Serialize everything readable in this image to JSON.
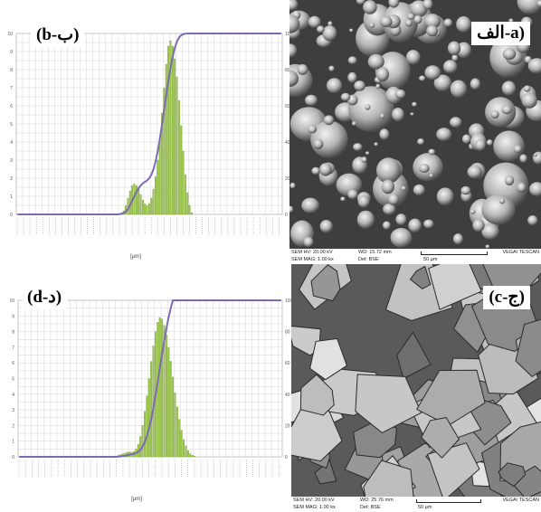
{
  "labels": {
    "b": "(b-ب)",
    "a": "الف-a)",
    "d": "(d-د)",
    "c": "(c-ج)"
  },
  "axis_unit": "[µm]",
  "sem_a": {
    "hv": "SEM HV: 20.00 kV",
    "mag": "SEM MAG: 1.00 kx",
    "wd": "WD: 15.72 mm",
    "det": "Det: BSE",
    "scale": "50 µm",
    "brand": "VEGA\\ TESCAN"
  },
  "sem_c": {
    "hv": "SEM HV: 20.00 kV",
    "mag": "SEM MAG: 1.00 kx",
    "wd": "WD: 25.76 mm",
    "det": "Det: BSE",
    "scale": "50 µm",
    "brand": "VEGA\\ TESCAN"
  },
  "colors": {
    "bar": "#9bc44f",
    "bar_edge": "#7ba32e",
    "curve": "#7d6ab3",
    "grid": "#d6d6d6"
  },
  "chart_data": [
    {
      "type": "bar",
      "panel": "b",
      "xlabel": "[µm]",
      "ylim": [
        0,
        10
      ],
      "y2lim": [
        0,
        100
      ],
      "y_ticks": [
        0,
        1,
        2,
        3,
        4,
        5,
        6,
        7,
        8,
        9,
        10
      ],
      "y2_ticks": [
        0,
        20,
        40,
        60,
        80,
        100
      ],
      "series": [
        {
          "kind": "bar",
          "values": [
            0,
            0,
            0,
            0,
            0,
            0,
            0,
            0,
            0,
            0,
            0,
            0,
            0,
            0,
            0,
            0,
            0,
            0,
            0,
            0,
            0,
            0,
            0,
            0,
            0,
            0,
            0,
            0,
            0,
            0,
            0,
            0,
            0,
            0,
            0,
            0,
            0,
            0,
            0,
            0,
            0,
            0,
            0,
            0,
            0,
            0,
            0,
            0,
            0.05,
            0.1,
            0.2,
            0.5,
            0.9,
            1.3,
            1.6,
            1.7,
            1.6,
            1.4,
            1.1,
            0.8,
            0.6,
            0.5,
            0.6,
            0.9,
            1.4,
            2.1,
            3.0,
            4.2,
            5.6,
            7.0,
            8.3,
            9.3,
            9.6,
            9.3,
            8.6,
            7.6,
            6.3,
            4.9,
            3.5,
            2.2,
            1.2,
            0.5,
            0.1
          ]
        },
        {
          "kind": "cumulative",
          "values": [
            0,
            0,
            0,
            0,
            0,
            0,
            0,
            0,
            0,
            0,
            0,
            0,
            0,
            0,
            0,
            0,
            0,
            0,
            0,
            0,
            0,
            0,
            0,
            0,
            0,
            0,
            0,
            0,
            0,
            0,
            0,
            0,
            0,
            0,
            0,
            0,
            0,
            0,
            0,
            0,
            0,
            0,
            0,
            0,
            0,
            0,
            0,
            0,
            0.1,
            0.3,
            0.7,
            1.5,
            3.0,
            5.2,
            7.6,
            10.0,
            12.5,
            14.5,
            16.0,
            17.2,
            18.0,
            18.8,
            20.0,
            22.0,
            25.0,
            29.5,
            35.0,
            42.0,
            50.0,
            58.0,
            66.0,
            74.0,
            81.0,
            87.0,
            92.0,
            95.5,
            97.8,
            99.0,
            99.6,
            99.9,
            100,
            100,
            100,
            100,
            100,
            100,
            100,
            100,
            100,
            100,
            100,
            100,
            100,
            100,
            100,
            100,
            100,
            100,
            100,
            100,
            100,
            100,
            100,
            100,
            100,
            100,
            100,
            100,
            100,
            100,
            100,
            100,
            100,
            100,
            100,
            100,
            100,
            100,
            100,
            100,
            100,
            100,
            100,
            100,
            100
          ]
        }
      ]
    },
    {
      "type": "bar",
      "panel": "d",
      "xlabel": "[µm]",
      "ylim": [
        0,
        10
      ],
      "y2lim": [
        0,
        100
      ],
      "y_ticks": [
        0,
        1,
        2,
        3,
        4,
        5,
        6,
        7,
        8,
        9,
        10
      ],
      "y2_ticks": [
        0,
        20,
        40,
        60,
        80,
        100
      ],
      "series": [
        {
          "kind": "bar",
          "values": [
            0,
            0,
            0,
            0,
            0,
            0,
            0,
            0,
            0,
            0,
            0,
            0,
            0,
            0,
            0,
            0,
            0,
            0,
            0,
            0,
            0,
            0,
            0,
            0,
            0,
            0,
            0,
            0,
            0,
            0,
            0,
            0,
            0,
            0,
            0,
            0,
            0,
            0,
            0,
            0,
            0,
            0,
            0,
            0,
            0,
            0.05,
            0.1,
            0.15,
            0.2,
            0.25,
            0.3,
            0.3,
            0.3,
            0.35,
            0.5,
            0.8,
            1.3,
            2.0,
            2.9,
            3.9,
            5.0,
            6.1,
            7.1,
            8.0,
            8.6,
            8.9,
            8.8,
            8.4,
            7.8,
            7.0,
            6.1,
            5.1,
            4.1,
            3.2,
            2.4,
            1.7,
            1.1,
            0.7,
            0.4,
            0.2,
            0.1,
            0.05
          ]
        },
        {
          "kind": "cumulative",
          "values": [
            0,
            0,
            0,
            0,
            0,
            0,
            0,
            0,
            0,
            0,
            0,
            0,
            0,
            0,
            0,
            0,
            0,
            0,
            0,
            0,
            0,
            0,
            0,
            0,
            0,
            0,
            0,
            0,
            0,
            0,
            0,
            0,
            0,
            0,
            0,
            0,
            0,
            0,
            0,
            0,
            0,
            0,
            0,
            0,
            0,
            0.05,
            0.15,
            0.3,
            0.5,
            0.75,
            1.0,
            1.3,
            1.6,
            1.9,
            2.4,
            3.2,
            4.5,
            6.5,
            9.4,
            13.3,
            18.3,
            24.4,
            31.5,
            39.5,
            48.1,
            57.0,
            65.8,
            74.2,
            82.0,
            89.0,
            95.1,
            100,
            100,
            100,
            100,
            100,
            100,
            100,
            100,
            100,
            100,
            100,
            100,
            100,
            100,
            100,
            100,
            100,
            100,
            100,
            100,
            100,
            100,
            100,
            100,
            100,
            100,
            100,
            100,
            100,
            100,
            100,
            100,
            100,
            100,
            100,
            100,
            100,
            100,
            100,
            100,
            100,
            100,
            100,
            100,
            100,
            100,
            100,
            100,
            100,
            100,
            100
          ]
        }
      ]
    }
  ]
}
